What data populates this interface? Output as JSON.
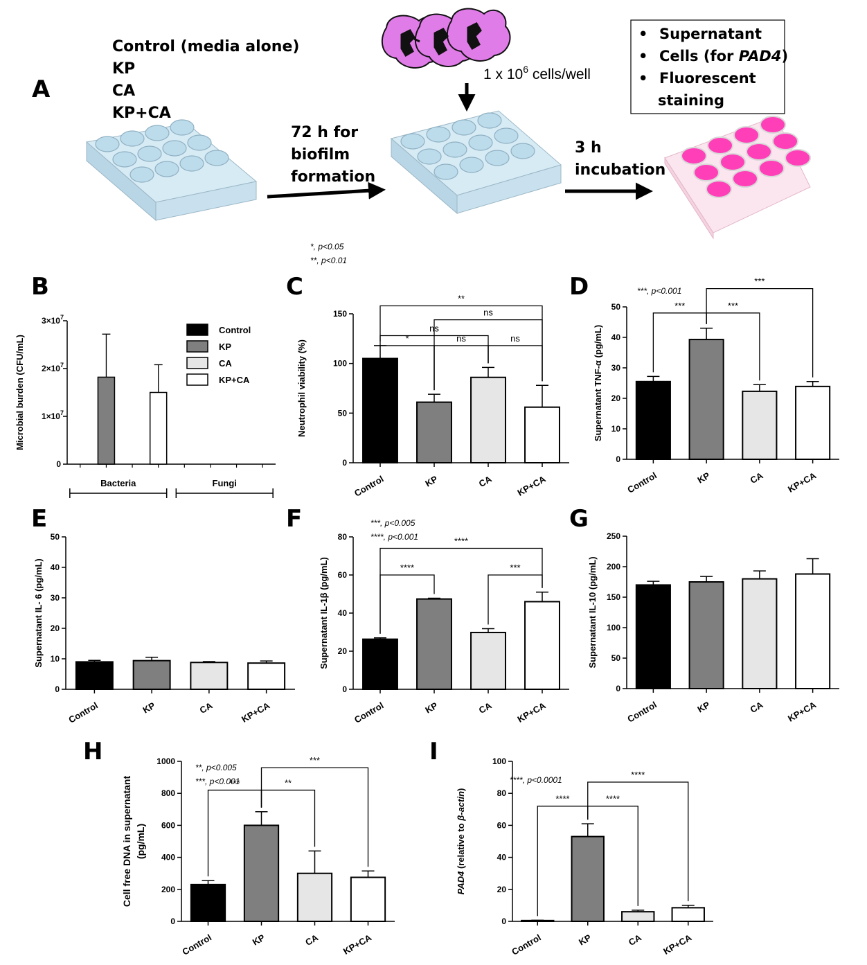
{
  "schematic": {
    "panel_label": "A",
    "groups": [
      "Control (media alone)",
      "KP",
      "CA",
      "KP+CA"
    ],
    "step1": [
      "72 h for",
      "biofilm",
      "formation"
    ],
    "cells_base": "1 x 10",
    "cells_exp": "6",
    "cells_unit": " cells/well",
    "step2": [
      "3 h",
      "incubation"
    ],
    "outputs": [
      "Supernatant",
      "Cells (for ",
      "PAD4",
      ")",
      "Fluorescent",
      "staining"
    ],
    "colors": {
      "neutrophil": "#e07ce8",
      "plate": "#bcdcec",
      "stain": "#ff3fb8"
    }
  },
  "chart_data": [
    {
      "id": "B",
      "type": "bar",
      "panel_label": "B",
      "ylabel": "Microbial burden (CFU/mL)",
      "ylim": [
        0,
        30000000
      ],
      "yticks": [
        0,
        10000000,
        20000000,
        30000000
      ],
      "ytick_labels": [
        "0",
        "1×10",
        "2×10",
        "3×10"
      ],
      "ytick_exp": [
        "",
        "7",
        "7",
        "7"
      ],
      "categories": [
        "Bacteria-Control",
        "Bacteria-KP",
        "Bacteria-CA",
        "Bacteria-KP+CA",
        "Fungi-Control",
        "Fungi-KP",
        "Fungi-CA",
        "Fungi-KP+CA"
      ],
      "values": [
        0,
        18200000,
        0,
        15000000,
        0,
        0,
        0,
        0
      ],
      "errors": [
        0,
        9000000,
        0,
        5800000,
        0,
        0,
        0,
        0
      ],
      "group_labels": [
        "Bacteria",
        "Fungi"
      ],
      "legend": [
        "Control",
        "KP",
        "CA",
        "KP+CA"
      ],
      "legend_colors": [
        "#000000",
        "#7f7f7f",
        "#e6e6e6",
        "#ffffff"
      ]
    },
    {
      "id": "C",
      "type": "bar",
      "panel_label": "C",
      "ylabel": "Neutrophil viability (%)",
      "ylim": [
        0,
        150
      ],
      "yticks": [
        0,
        50,
        100,
        150
      ],
      "categories": [
        "Control",
        "KP",
        "CA",
        "KP+CA"
      ],
      "values": [
        105,
        61,
        86,
        56
      ],
      "errors": [
        13,
        8,
        10,
        22
      ],
      "notes": [
        "*, p<0.05",
        "**, p<0.01"
      ],
      "significance": [
        {
          "a": 0,
          "b": 3,
          "label": "**",
          "y": 158
        },
        {
          "a": 1,
          "b": 3,
          "label": "ns",
          "y": 144
        },
        {
          "a": 0,
          "b": 2,
          "label": "ns",
          "y": 128
        },
        {
          "a": 0,
          "b": 1,
          "label": "*",
          "y": 118
        },
        {
          "a": 1,
          "b": 2,
          "label": "ns",
          "y": 118
        },
        {
          "a": 2,
          "b": 3,
          "label": "ns",
          "y": 118
        }
      ]
    },
    {
      "id": "D",
      "type": "bar",
      "panel_label": "D",
      "ylabel": "Supernatant TNF-α (pg/mL)",
      "ylim": [
        0,
        50
      ],
      "yticks": [
        0,
        10,
        20,
        30,
        40,
        50
      ],
      "categories": [
        "Control",
        "KP",
        "CA",
        "KP+CA"
      ],
      "values": [
        25.5,
        39.3,
        22.3,
        23.9
      ],
      "errors": [
        1.7,
        3.7,
        2.2,
        1.6
      ],
      "notes": [
        "***, p<0.001"
      ],
      "significance": [
        {
          "a": 1,
          "b": 3,
          "label": "***",
          "y": 56
        },
        {
          "a": 0,
          "b": 1,
          "label": "***",
          "y": 48
        },
        {
          "a": 1,
          "b": 2,
          "label": "***",
          "y": 48
        }
      ]
    },
    {
      "id": "E",
      "type": "bar",
      "panel_label": "E",
      "ylabel": "Supernatant IL- 6  (pg/mL)",
      "ylim": [
        0,
        50
      ],
      "yticks": [
        0,
        10,
        20,
        30,
        40,
        50
      ],
      "categories": [
        "Control",
        "KP",
        "CA",
        "KP+CA"
      ],
      "values": [
        9,
        9.4,
        8.8,
        8.6
      ],
      "errors": [
        0.5,
        1.1,
        0.3,
        0.7
      ],
      "notes": [],
      "significance": []
    },
    {
      "id": "F",
      "type": "bar",
      "panel_label": "F",
      "ylabel": "Supernatant IL-1β (pg/mL)",
      "ylim": [
        0,
        80
      ],
      "yticks": [
        0,
        20,
        40,
        60,
        80
      ],
      "categories": [
        "Control",
        "KP",
        "CA",
        "KP+CA"
      ],
      "values": [
        26.3,
        47.4,
        29.8,
        46
      ],
      "errors": [
        0.7,
        0.4,
        2,
        5
      ],
      "notes": [
        "***, p<0.005",
        "****, p<0.001"
      ],
      "significance": [
        {
          "a": 0,
          "b": 3,
          "label": "****",
          "y": 74
        },
        {
          "a": 0,
          "b": 1,
          "label": "****",
          "y": 60
        },
        {
          "a": 2,
          "b": 3,
          "label": "***",
          "y": 60
        }
      ]
    },
    {
      "id": "G",
      "type": "bar",
      "panel_label": "G",
      "ylabel": "Supernatant IL-10 (pg/mL)",
      "ylim": [
        0,
        250
      ],
      "yticks": [
        0,
        50,
        100,
        150,
        200,
        250
      ],
      "categories": [
        "Control",
        "KP",
        "CA",
        "KP+CA"
      ],
      "values": [
        170,
        175,
        180,
        188
      ],
      "errors": [
        6,
        9,
        13,
        25
      ],
      "notes": [],
      "significance": []
    },
    {
      "id": "H",
      "type": "bar",
      "panel_label": "H",
      "ylabel": "Cell free DNA in supernatant",
      "ylabel2": "(pg/mL)",
      "ylim": [
        0,
        1000
      ],
      "yticks": [
        0,
        200,
        400,
        600,
        800,
        1000
      ],
      "categories": [
        "Control",
        "KP",
        "CA",
        "KP+CA"
      ],
      "values": [
        230,
        600,
        300,
        275
      ],
      "errors": [
        25,
        85,
        140,
        40
      ],
      "notes": [
        "**, p<0.005",
        "***, p<0.001"
      ],
      "significance": [
        {
          "a": 1,
          "b": 3,
          "label": "***",
          "y": 960
        },
        {
          "a": 0,
          "b": 1,
          "label": "***",
          "y": 820
        },
        {
          "a": 1,
          "b": 2,
          "label": "**",
          "y": 820
        }
      ]
    },
    {
      "id": "I",
      "type": "bar",
      "panel_label": "I",
      "ylabel_italic": "PAD4",
      "ylabel_mid": " (relative to ",
      "ylabel_italic2": "β-actin",
      "ylabel_end": ")",
      "ylim": [
        0,
        100
      ],
      "yticks": [
        0,
        20,
        40,
        60,
        80,
        100
      ],
      "categories": [
        "Control",
        "KP",
        "CA",
        "KP+CA"
      ],
      "values": [
        0.5,
        53,
        6,
        8.5
      ],
      "errors": [
        0.2,
        8,
        1,
        1.5
      ],
      "notes": [
        "****, p<0.0001"
      ],
      "significance": [
        {
          "a": 1,
          "b": 3,
          "label": "****",
          "y": 87
        },
        {
          "a": 0,
          "b": 1,
          "label": "****",
          "y": 72
        },
        {
          "a": 1,
          "b": 2,
          "label": "****",
          "y": 72
        }
      ]
    }
  ],
  "colors": {
    "Control": "#000000",
    "KP": "#7f7f7f",
    "CA": "#e6e6e6",
    "KP+CA": "#ffffff"
  }
}
